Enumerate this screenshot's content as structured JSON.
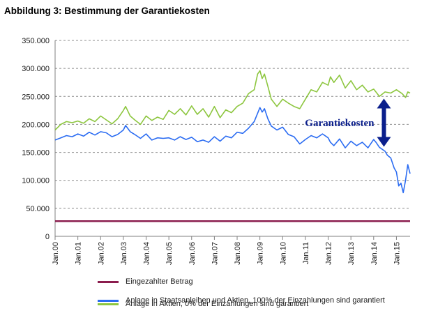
{
  "figure": {
    "title": "Abbildung 3: Bestimmung der Garantiekosten"
  },
  "chart_data": {
    "type": "line",
    "title": "Abbildung 3: Bestimmung der Garantiekosten",
    "xlabel": "",
    "ylabel": "",
    "ylim": [
      0,
      350000
    ],
    "x_tick_labels": [
      "Jan.00",
      "Jan.01",
      "Jan.02",
      "Jan.03",
      "Jan.04",
      "Jan.05",
      "Jan.06",
      "Jan.07",
      "Jan.08",
      "Jan.09",
      "Jan.10",
      "Jan.11",
      "Jan.12",
      "Jan.13",
      "Jan.14",
      "Jan.15"
    ],
    "y_tick_labels": [
      "0",
      "50.000",
      "100.000",
      "150.000",
      "200.000",
      "250.000",
      "300.000",
      "350.000"
    ],
    "y_ticks": [
      0,
      50000,
      100000,
      150000,
      200000,
      250000,
      300000,
      350000
    ],
    "grid": "horizontal dashed",
    "legend_position": "bottom",
    "annotation": {
      "text": "Garantiekosten",
      "color": "#0b1f8c",
      "arrow_x": 2014.45,
      "arrow_from": 160000,
      "arrow_to": 246000
    },
    "series": [
      {
        "name": "Eingezahlter Betrag",
        "color": "#8b1d4e",
        "x": [
          2000.0,
          2015.6
        ],
        "y": [
          27000,
          27000
        ]
      },
      {
        "name": "Anlage in Staatsanleihen und Aktien, 100% der Einzahlungen sind garantiert",
        "color": "#2b6cf2",
        "x": [
          2000.0,
          2000.25,
          2000.5,
          2000.75,
          2001.0,
          2001.25,
          2001.5,
          2001.75,
          2002.0,
          2002.25,
          2002.5,
          2002.75,
          2003.0,
          2003.1,
          2003.3,
          2003.5,
          2003.75,
          2004.0,
          2004.25,
          2004.5,
          2004.75,
          2005.0,
          2005.25,
          2005.5,
          2005.75,
          2006.0,
          2006.25,
          2006.5,
          2006.75,
          2007.0,
          2007.25,
          2007.5,
          2007.75,
          2008.0,
          2008.25,
          2008.5,
          2008.75,
          2008.9,
          2009.0,
          2009.1,
          2009.2,
          2009.35,
          2009.5,
          2009.75,
          2010.0,
          2010.25,
          2010.5,
          2010.75,
          2011.0,
          2011.25,
          2011.5,
          2011.75,
          2012.0,
          2012.1,
          2012.25,
          2012.5,
          2012.75,
          2013.0,
          2013.25,
          2013.5,
          2013.75,
          2014.0,
          2014.1,
          2014.25,
          2014.5,
          2014.6,
          2014.75,
          2014.9,
          2015.0,
          2015.1,
          2015.2,
          2015.3,
          2015.4,
          2015.5,
          2015.6
        ],
        "y": [
          172000,
          176000,
          180000,
          178000,
          183000,
          179000,
          186000,
          181000,
          187000,
          185000,
          178000,
          182000,
          190000,
          198000,
          187000,
          182000,
          175000,
          183000,
          172000,
          176000,
          175000,
          176000,
          172000,
          178000,
          173000,
          177000,
          169000,
          172000,
          168000,
          178000,
          170000,
          179000,
          176000,
          186000,
          184000,
          193000,
          205000,
          220000,
          230000,
          222000,
          228000,
          210000,
          197000,
          190000,
          195000,
          182000,
          178000,
          165000,
          173000,
          180000,
          176000,
          183000,
          176000,
          168000,
          162000,
          174000,
          158000,
          170000,
          162000,
          168000,
          158000,
          173000,
          168000,
          159000,
          152000,
          145000,
          140000,
          122000,
          115000,
          90000,
          95000,
          78000,
          100000,
          128000,
          112000
        ]
      },
      {
        "name": "Anlage in Aktien, 0% der Einzahlungen sind garantiert",
        "color": "#8dc63f",
        "x": [
          2000.0,
          2000.25,
          2000.5,
          2000.75,
          2001.0,
          2001.25,
          2001.5,
          2001.75,
          2002.0,
          2002.25,
          2002.5,
          2002.75,
          2003.0,
          2003.1,
          2003.3,
          2003.5,
          2003.75,
          2004.0,
          2004.25,
          2004.5,
          2004.75,
          2005.0,
          2005.25,
          2005.5,
          2005.75,
          2006.0,
          2006.25,
          2006.5,
          2006.75,
          2007.0,
          2007.25,
          2007.5,
          2007.75,
          2008.0,
          2008.25,
          2008.5,
          2008.75,
          2008.9,
          2009.0,
          2009.1,
          2009.2,
          2009.35,
          2009.5,
          2009.75,
          2010.0,
          2010.25,
          2010.5,
          2010.75,
          2011.0,
          2011.25,
          2011.5,
          2011.75,
          2012.0,
          2012.1,
          2012.25,
          2012.5,
          2012.75,
          2013.0,
          2013.25,
          2013.5,
          2013.75,
          2014.0,
          2014.25,
          2014.5,
          2014.75,
          2015.0,
          2015.25,
          2015.4,
          2015.5,
          2015.6
        ],
        "y": [
          190000,
          200000,
          205000,
          203000,
          206000,
          202000,
          210000,
          205000,
          215000,
          208000,
          201000,
          210000,
          225000,
          232000,
          215000,
          208000,
          200000,
          215000,
          207000,
          213000,
          209000,
          225000,
          218000,
          228000,
          217000,
          233000,
          218000,
          228000,
          213000,
          232000,
          212000,
          226000,
          221000,
          232000,
          238000,
          255000,
          262000,
          290000,
          296000,
          282000,
          290000,
          268000,
          245000,
          232000,
          245000,
          238000,
          232000,
          228000,
          245000,
          262000,
          258000,
          275000,
          270000,
          285000,
          275000,
          288000,
          265000,
          278000,
          262000,
          270000,
          258000,
          263000,
          250000,
          258000,
          256000,
          262000,
          255000,
          248000,
          258000,
          256000
        ]
      }
    ]
  }
}
